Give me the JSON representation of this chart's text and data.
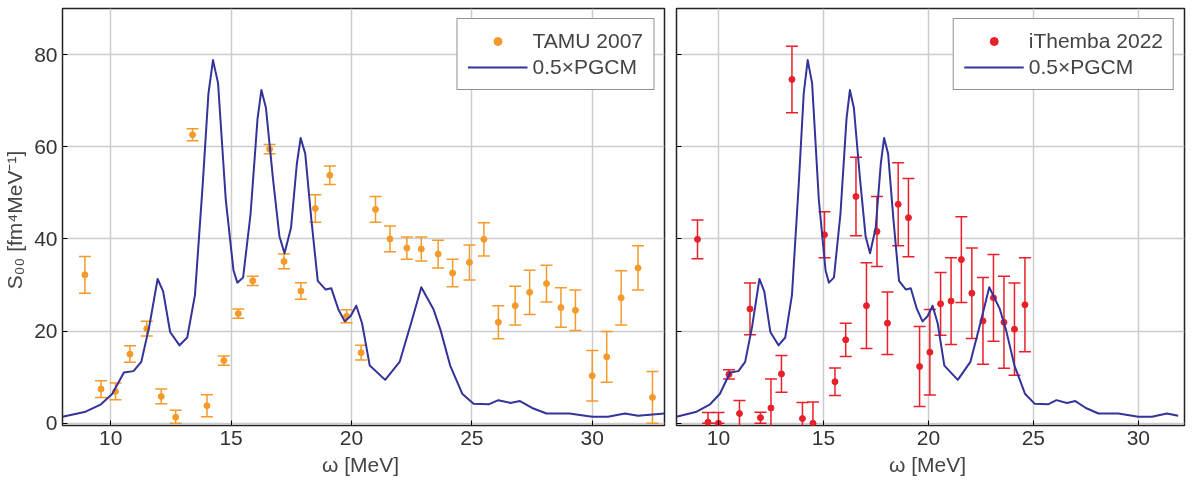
{
  "chart_data": [
    {
      "type": "scatter",
      "ylabel": "S₀₀  [fm⁴MeV⁻¹]",
      "xlabel": "ω  [MeV]",
      "xlim": [
        8,
        33
      ],
      "ylim": [
        -0.5,
        90
      ],
      "xticks": [
        10,
        15,
        20,
        25,
        30
      ],
      "yticks": [
        0,
        20,
        40,
        60,
        80
      ],
      "grid": true,
      "legend": "top right",
      "series": [
        {
          "type": "scatter",
          "name": "TAMU 2007",
          "color": "#f39a2b",
          "marker": "circle",
          "x": [
            8.93,
            9.6,
            10.2,
            10.8,
            11.5,
            12.1,
            12.7,
            13.4,
            14.0,
            14.7,
            15.3,
            15.9,
            16.6,
            17.2,
            17.9,
            18.5,
            19.1,
            19.8,
            20.4,
            21.0,
            21.6,
            22.3,
            22.9,
            23.6,
            24.2,
            24.9,
            25.5,
            26.1,
            26.8,
            27.4,
            28.1,
            28.7,
            29.3,
            30.0,
            30.6,
            31.2,
            31.9,
            32.5
          ],
          "values": [
            32.2,
            7.4,
            6.9,
            15.0,
            20.5,
            5.8,
            1.3,
            62.6,
            3.8,
            13.6,
            23.8,
            30.9,
            59.5,
            35.1,
            28.7,
            46.6,
            53.8,
            23.2,
            15.3,
            46.4,
            40.0,
            38.0,
            37.8,
            36.7,
            32.6,
            34.9,
            39.9,
            21.9,
            25.5,
            28.4,
            30.3,
            25.1,
            24.5,
            10.3,
            14.4,
            27.2,
            33.7,
            5.6
          ],
          "errors": [
            4,
            1.8,
            1.8,
            1.8,
            1.6,
            1.6,
            [
              0,
              2.8
            ],
            1.3,
            2.4,
            1,
            1,
            1,
            1,
            1.6,
            1.8,
            3,
            2,
            1.4,
            1.6,
            2.8,
            2.8,
            2.4,
            2.6,
            3,
            3,
            3.8,
            3.6,
            3.6,
            4.2,
            4.8,
            4,
            4.3,
            4.4,
            5.5,
            5.5,
            5.9,
            4.8,
            5.6
          ]
        },
        {
          "type": "line",
          "name": "0.5×PGCM",
          "color": "#33339a",
          "line_style": "solid",
          "x": [
            8.0,
            8.96,
            9.6,
            10.07,
            10.55,
            10.95,
            11.27,
            11.6,
            11.95,
            12.18,
            12.47,
            12.86,
            13.18,
            13.5,
            13.82,
            14.06,
            14.25,
            14.46,
            14.78,
            15.1,
            15.26,
            15.5,
            15.81,
            16.1,
            16.26,
            16.45,
            16.74,
            17.01,
            17.22,
            17.49,
            17.73,
            17.89,
            18.08,
            18.34,
            18.6,
            18.93,
            19.16,
            19.45,
            19.72,
            19.96,
            20.2,
            20.44,
            20.76,
            21.4,
            22.0,
            22.52,
            22.9,
            23.4,
            23.7,
            24.1,
            24.6,
            25.07,
            25.7,
            26.1,
            26.6,
            27.0,
            27.5,
            28.1,
            29.05,
            30.0,
            30.65,
            31.36,
            31.9,
            33.0
          ],
          "values": [
            1.4,
            2.5,
            4.1,
            6.4,
            11.0,
            11.3,
            13.3,
            20.9,
            31.3,
            28.6,
            19.8,
            16.9,
            18.6,
            27.8,
            51.6,
            71.5,
            78.8,
            73.8,
            48.5,
            33.2,
            30.5,
            31.6,
            45.4,
            66.1,
            72.3,
            68.4,
            53.1,
            40.5,
            36.9,
            42.4,
            56.2,
            61.9,
            58.5,
            43.9,
            30.9,
            29.0,
            29.3,
            24.8,
            22.1,
            23.2,
            25.5,
            21.7,
            12.5,
            9.4,
            13.3,
            22.5,
            29.5,
            24.8,
            20.2,
            12.5,
            6.4,
            4.2,
            4.1,
            5.0,
            4.4,
            4.8,
            3.3,
            2.1,
            2.1,
            1.4,
            1.4,
            2.1,
            1.6,
            2.1
          ]
        }
      ]
    },
    {
      "type": "scatter",
      "xlabel": "ω  [MeV]",
      "xlim": [
        8,
        32.2
      ],
      "ylim": [
        -0.5,
        90
      ],
      "xticks": [
        10,
        15,
        20,
        25,
        30
      ],
      "yticks": [
        0,
        20,
        40,
        60,
        80
      ],
      "tick_labels": "x",
      "grid": true,
      "legend": "top right",
      "series": [
        {
          "type": "scatter",
          "name": "iThemba 2022",
          "color": "#e8202a",
          "marker": "circle",
          "x": [
            9.0,
            9.5,
            10.0,
            10.5,
            11.0,
            11.5,
            12.0,
            12.5,
            13.0,
            13.5,
            14.0,
            14.5,
            15.05,
            15.55,
            16.06,
            16.55,
            17.05,
            17.55,
            18.05,
            18.56,
            19.05,
            19.58,
            20.07,
            20.58,
            21.08,
            21.57,
            22.07,
            22.6,
            23.1,
            23.6,
            24.1,
            24.6
          ],
          "values": [
            39.9,
            0.2,
            0,
            10.6,
            2.1,
            24.8,
            1.2,
            3.3,
            10.7,
            74.6,
            1.0,
            0,
            40.9,
            9.0,
            18.1,
            49.2,
            25.5,
            41.6,
            21.7,
            47.5,
            44.6,
            12.3,
            15.4,
            25.9,
            26.5,
            35.5,
            28.2,
            22.2,
            27.2,
            21.9,
            20.4,
            25.7
          ],
          "errors": [
            4.2,
            [
              0,
              2.3
            ],
            [
              0,
              2.3
            ],
            1,
            2.8,
            5.6,
            [
              0,
              2.4
            ],
            6.3,
            4,
            7.2,
            3.5,
            4.6,
            5,
            3,
            3.6,
            8.5,
            9.3,
            7.6,
            6.8,
            9,
            8.5,
            8.7,
            9.3,
            6.8,
            9.4,
            9.3,
            9.8,
            9.4,
            9.4,
            10,
            10,
            10.2
          ]
        },
        {
          "type": "line",
          "name": "0.5×PGCM",
          "color": "#33339a",
          "line_style": "solid",
          "x": [
            8.0,
            8.96,
            9.6,
            10.07,
            10.55,
            10.95,
            11.27,
            11.6,
            11.95,
            12.18,
            12.47,
            12.86,
            13.18,
            13.5,
            13.82,
            14.06,
            14.25,
            14.46,
            14.78,
            15.1,
            15.26,
            15.5,
            15.81,
            16.1,
            16.26,
            16.45,
            16.74,
            17.01,
            17.22,
            17.49,
            17.73,
            17.89,
            18.08,
            18.34,
            18.6,
            18.93,
            19.16,
            19.45,
            19.72,
            19.96,
            20.2,
            20.44,
            20.76,
            21.4,
            22.0,
            22.52,
            22.9,
            23.4,
            23.7,
            24.1,
            24.6,
            25.07,
            25.7,
            26.1,
            26.6,
            27.0,
            27.5,
            28.1,
            29.05,
            30.0,
            30.65,
            31.36,
            31.9
          ],
          "values": [
            1.4,
            2.5,
            4.1,
            6.4,
            11.0,
            11.3,
            13.3,
            20.9,
            31.3,
            28.6,
            19.8,
            16.9,
            18.6,
            27.8,
            51.6,
            71.5,
            78.8,
            73.8,
            48.5,
            33.2,
            30.5,
            31.6,
            45.4,
            66.1,
            72.3,
            68.4,
            53.1,
            40.5,
            36.9,
            42.4,
            56.2,
            61.9,
            58.5,
            43.9,
            30.9,
            29.0,
            29.3,
            24.8,
            22.1,
            23.2,
            25.5,
            21.7,
            12.5,
            9.4,
            13.3,
            22.5,
            29.5,
            24.8,
            20.2,
            12.5,
            6.4,
            4.2,
            4.1,
            5.0,
            4.4,
            4.8,
            3.3,
            2.1,
            2.1,
            1.4,
            1.4,
            2.1,
            1.6
          ]
        }
      ]
    }
  ]
}
